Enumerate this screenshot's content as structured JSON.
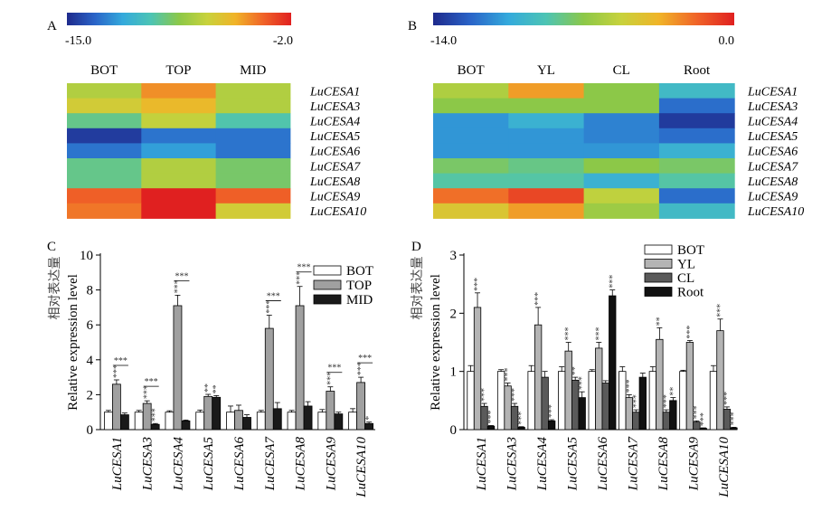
{
  "gradient_colors": [
    "#1e2a8c",
    "#2a64c8",
    "#34aadc",
    "#4cc4b4",
    "#8cc848",
    "#c8d23c",
    "#f0b428",
    "#f06428",
    "#e02020"
  ],
  "chart_data": [
    {
      "panel": "A",
      "type": "heatmap",
      "colorbar": {
        "min_label": "-15.0",
        "max_label": "-2.0",
        "min": -15.0,
        "max": -2.0
      },
      "columns": [
        "BOT",
        "TOP",
        "MID"
      ],
      "rows": [
        "LuCESA1",
        "LuCESA3",
        "LuCESA4",
        "LuCESA5",
        "LuCESA6",
        "LuCESA7",
        "LuCESA8",
        "LuCESA9",
        "LuCESA10"
      ],
      "values": [
        [
          -7.5,
          -4.5,
          -7.5
        ],
        [
          -6.5,
          -5.5,
          -7.5
        ],
        [
          -9.5,
          -7.0,
          -10.0
        ],
        [
          -14.5,
          -13.0,
          -13.0
        ],
        [
          -13.0,
          -12.0,
          -13.0
        ],
        [
          -9.5,
          -7.5,
          -9.0
        ],
        [
          -9.5,
          -7.5,
          -9.0
        ],
        [
          -3.5,
          -2.0,
          -3.5
        ],
        [
          -4.0,
          -2.0,
          -6.5
        ]
      ]
    },
    {
      "panel": "B",
      "type": "heatmap",
      "colorbar": {
        "min_label": "-14.0",
        "max_label": "0.0",
        "min": -14.0,
        "max": 0.0
      },
      "columns": [
        "BOT",
        "YL",
        "CL",
        "Root"
      ],
      "rows": [
        "LuCESA1",
        "LuCESA3",
        "LuCESA4",
        "LuCESA5",
        "LuCESA6",
        "LuCESA7",
        "LuCESA8",
        "LuCESA9",
        "LuCESA10"
      ],
      "values": [
        [
          -6.0,
          -3.0,
          -7.0,
          -9.5
        ],
        [
          -7.0,
          -7.0,
          -7.0,
          -12.0
        ],
        [
          -11.0,
          -10.0,
          -11.5,
          -13.5
        ],
        [
          -11.0,
          -11.0,
          -11.5,
          -12.0
        ],
        [
          -11.0,
          -11.0,
          -11.0,
          -10.0
        ],
        [
          -7.5,
          -8.0,
          -7.0,
          -7.5
        ],
        [
          -8.5,
          -8.5,
          -10.0,
          -8.5
        ],
        [
          -2.0,
          -1.0,
          -5.5,
          -12.0
        ],
        [
          -4.5,
          -3.0,
          -6.5,
          -9.5
        ]
      ]
    },
    {
      "panel": "C",
      "type": "bar",
      "ylabel_cn": "相对表达量",
      "ylabel": "Relative expression level",
      "ylim": [
        0,
        10
      ],
      "yticks": [
        "0",
        "2",
        "4",
        "6",
        "8",
        "10"
      ],
      "categories": [
        "LuCESA1",
        "LuCESA3",
        "LuCESA4",
        "LuCESA5",
        "LuCESA6",
        "LuCESA7",
        "LuCESA8",
        "LuCESA9",
        "LuCESA10"
      ],
      "series": [
        {
          "name": "BOT",
          "color": "#ffffff",
          "values": [
            1.0,
            1.0,
            1.0,
            1.0,
            1.0,
            1.0,
            1.0,
            1.0,
            1.0
          ],
          "errors": [
            0.1,
            0.1,
            0.08,
            0.12,
            0.35,
            0.1,
            0.1,
            0.15,
            0.2
          ]
        },
        {
          "name": "TOP",
          "color": "#a0a0a0",
          "values": [
            2.6,
            1.5,
            7.1,
            1.9,
            1.1,
            5.8,
            7.1,
            2.2,
            2.7
          ],
          "errors": [
            0.25,
            0.15,
            0.6,
            0.12,
            0.3,
            0.75,
            1.1,
            0.25,
            0.3
          ]
        },
        {
          "name": "MID",
          "color": "#1a1a1a",
          "values": [
            0.85,
            0.3,
            0.5,
            1.85,
            0.7,
            1.2,
            1.35,
            0.9,
            0.35
          ],
          "errors": [
            0.1,
            0.05,
            0.05,
            0.1,
            0.15,
            0.35,
            0.25,
            0.1,
            0.08
          ]
        }
      ],
      "annotations": [
        {
          "category": "LuCESA1",
          "series": "TOP",
          "text": "***"
        },
        {
          "category": "LuCESA1",
          "bracket": [
            "TOP",
            "MID"
          ],
          "text": "***"
        },
        {
          "category": "LuCESA3",
          "series": "TOP",
          "text": "***"
        },
        {
          "category": "LuCESA3",
          "series": "MID",
          "text": "***"
        },
        {
          "category": "LuCESA3",
          "bracket": [
            "TOP",
            "MID"
          ],
          "text": "***"
        },
        {
          "category": "LuCESA4",
          "series": "TOP",
          "text": "***"
        },
        {
          "category": "LuCESA4",
          "bracket": [
            "TOP",
            "MID"
          ],
          "text": "***"
        },
        {
          "category": "LuCESA5",
          "series": "TOP",
          "text": "**"
        },
        {
          "category": "LuCESA5",
          "series": "MID",
          "text": "**"
        },
        {
          "category": "LuCESA7",
          "series": "TOP",
          "text": "***"
        },
        {
          "category": "LuCESA7",
          "bracket": [
            "TOP",
            "MID"
          ],
          "text": "***"
        },
        {
          "category": "LuCESA8",
          "series": "TOP",
          "text": "***"
        },
        {
          "category": "LuCESA8",
          "bracket": [
            "TOP",
            "MID"
          ],
          "text": "***"
        },
        {
          "category": "LuCESA9",
          "series": "TOP",
          "text": "***"
        },
        {
          "category": "LuCESA9",
          "bracket": [
            "TOP",
            "MID"
          ],
          "text": "***"
        },
        {
          "category": "LuCESA10",
          "series": "TOP",
          "text": "***"
        },
        {
          "category": "LuCESA10",
          "series": "MID",
          "text": "*"
        },
        {
          "category": "LuCESA10",
          "bracket": [
            "TOP",
            "MID"
          ],
          "text": "***"
        }
      ]
    },
    {
      "panel": "D",
      "type": "bar",
      "ylabel_cn": "相对表达量",
      "ylabel": "Relative expression level",
      "ylim": [
        0,
        3
      ],
      "yticks": [
        "0",
        "1",
        "2",
        "3"
      ],
      "categories": [
        "LuCESA1",
        "LuCESA3",
        "LuCESA4",
        "LuCESA5",
        "LuCESA6",
        "LuCESA7",
        "LuCESA8",
        "LuCESA9",
        "LuCESA10"
      ],
      "series": [
        {
          "name": "BOT",
          "color": "#ffffff",
          "values": [
            1.0,
            1.0,
            1.0,
            1.0,
            1.0,
            1.0,
            1.0,
            1.0,
            1.0
          ],
          "errors": [
            0.1,
            0.03,
            0.1,
            0.08,
            0.03,
            0.08,
            0.08,
            0.02,
            0.1
          ]
        },
        {
          "name": "YL",
          "color": "#b4b4b4",
          "values": [
            2.1,
            0.75,
            1.8,
            1.35,
            1.4,
            0.55,
            1.55,
            1.5,
            1.7
          ],
          "errors": [
            0.25,
            0.05,
            0.3,
            0.15,
            0.1,
            0.05,
            0.2,
            0.03,
            0.2
          ]
        },
        {
          "name": "CL",
          "color": "#5a5a5a",
          "values": [
            0.4,
            0.4,
            0.9,
            0.85,
            0.8,
            0.3,
            0.3,
            0.13,
            0.35
          ],
          "errors": [
            0.05,
            0.05,
            0.1,
            0.05,
            0.04,
            0.04,
            0.04,
            0.02,
            0.04
          ]
        },
        {
          "name": "Root",
          "color": "#111111",
          "values": [
            0.06,
            0.04,
            0.15,
            0.55,
            2.3,
            0.9,
            0.5,
            0.02,
            0.03
          ],
          "errors": [
            0.01,
            0.01,
            0.02,
            0.1,
            0.1,
            0.07,
            0.05,
            0.01,
            0.01
          ]
        }
      ],
      "annotations": [
        {
          "category": "LuCESA1",
          "series": "YL",
          "text": "***"
        },
        {
          "category": "LuCESA1",
          "series": "CL",
          "text": "***"
        },
        {
          "category": "LuCESA1",
          "series": "Root",
          "text": "***"
        },
        {
          "category": "LuCESA3",
          "series": "YL",
          "text": "***"
        },
        {
          "category": "LuCESA3",
          "series": "CL",
          "text": "***"
        },
        {
          "category": "LuCESA3",
          "series": "Root",
          "text": "***"
        },
        {
          "category": "LuCESA4",
          "series": "YL",
          "text": "***"
        },
        {
          "category": "LuCESA4",
          "series": "Root",
          "text": "***"
        },
        {
          "category": "LuCESA5",
          "series": "YL",
          "text": "***"
        },
        {
          "category": "LuCESA5",
          "series": "CL",
          "text": "**"
        },
        {
          "category": "LuCESA5",
          "series": "Root",
          "text": "***"
        },
        {
          "category": "LuCESA6",
          "series": "YL",
          "text": "***"
        },
        {
          "category": "LuCESA6",
          "series": "Root",
          "text": "***"
        },
        {
          "category": "LuCESA7",
          "series": "YL",
          "text": "***"
        },
        {
          "category": "LuCESA7",
          "series": "CL",
          "text": "***"
        },
        {
          "category": "LuCESA8",
          "series": "YL",
          "text": "**"
        },
        {
          "category": "LuCESA8",
          "series": "CL",
          "text": "***"
        },
        {
          "category": "LuCESA8",
          "series": "Root",
          "text": "**"
        },
        {
          "category": "LuCESA9",
          "series": "YL",
          "text": "***"
        },
        {
          "category": "LuCESA9",
          "series": "CL",
          "text": "***"
        },
        {
          "category": "LuCESA9",
          "series": "Root",
          "text": "***"
        },
        {
          "category": "LuCESA10",
          "series": "YL",
          "text": "***"
        },
        {
          "category": "LuCESA10",
          "series": "CL",
          "text": "***"
        },
        {
          "category": "LuCESA10",
          "series": "Root",
          "text": "***"
        }
      ]
    }
  ]
}
